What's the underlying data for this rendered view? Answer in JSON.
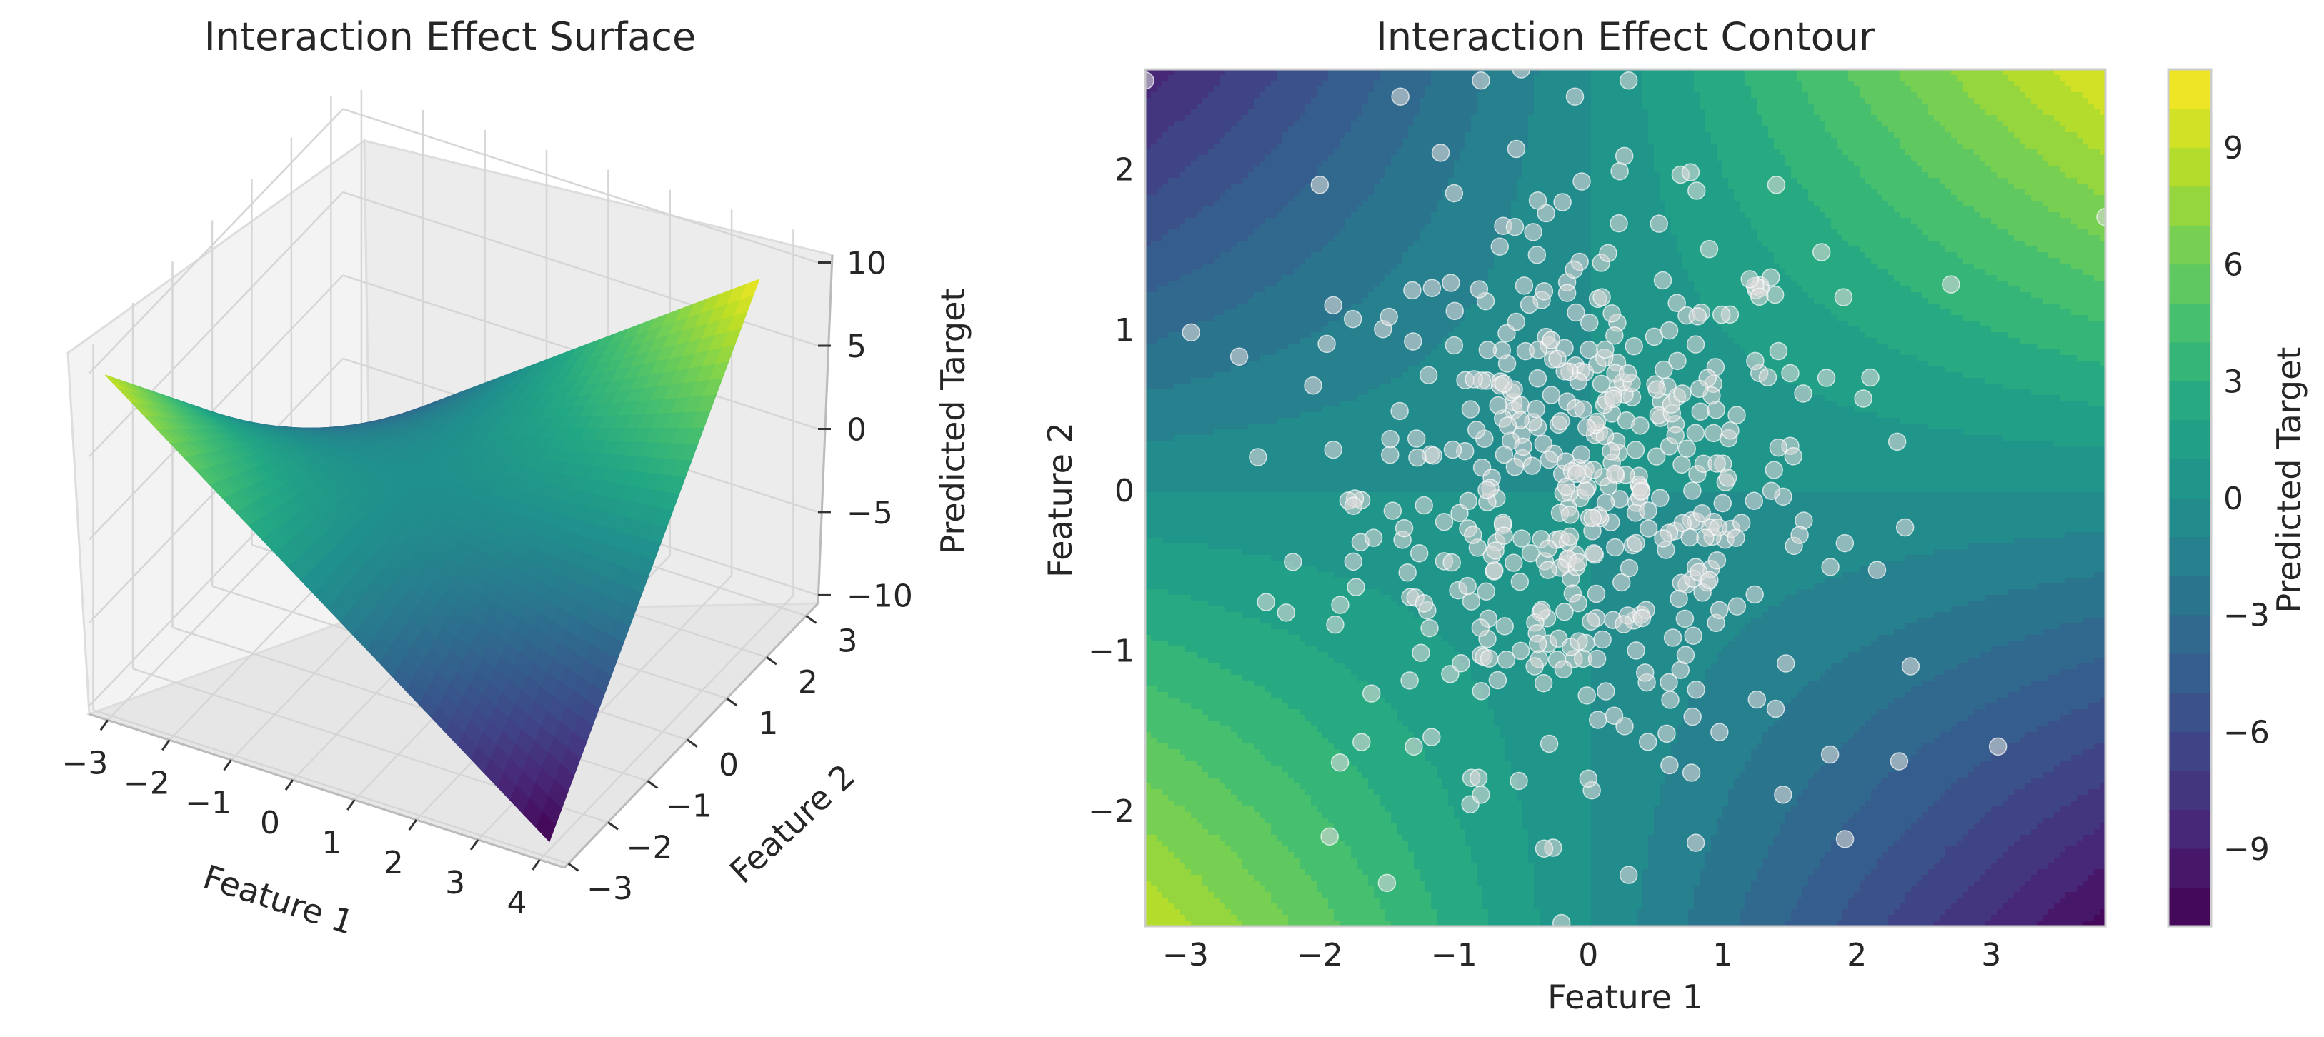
{
  "chart_data": [
    {
      "type": "surface3d",
      "title": "Interaction Effect Surface",
      "xlabel": "Feature 1",
      "ylabel": "Feature 2",
      "zlabel": "Predicted Target",
      "xlim": [
        -3.3,
        4.4
      ],
      "ylim": [
        -3.1,
        3.3
      ],
      "zlim": [
        -10.5,
        11.5
      ],
      "x_ticks": [
        -3,
        -2,
        -1,
        0,
        1,
        2,
        3,
        4
      ],
      "y_ticks": [
        -3,
        -2,
        -1,
        0,
        1,
        2,
        3
      ],
      "z_ticks": [
        -10,
        -5,
        0,
        5,
        10
      ],
      "x_tick_labels": [
        "−3",
        "−2",
        "−1",
        "0",
        "1",
        "2",
        "3",
        "4"
      ],
      "y_tick_labels": [
        "−3",
        "−2",
        "−1",
        "0",
        "1",
        "2",
        "3"
      ],
      "z_tick_labels": [
        "−10",
        "−5",
        "0",
        "5",
        "10"
      ],
      "surface": {
        "function": "z = x * y",
        "x_range": [
          -3.3,
          3.9
        ],
        "y_range": [
          -2.7,
          2.6
        ],
        "corners": [
          {
            "x": -3.3,
            "y": -2.7,
            "z": 8.9
          },
          {
            "x": 3.9,
            "y": -2.7,
            "z": -10.5
          },
          {
            "x": 3.9,
            "y": 2.6,
            "z": 10.1
          },
          {
            "x": -3.3,
            "y": 2.6,
            "z": -8.6
          }
        ]
      },
      "colormap": "viridis",
      "grid": true
    },
    {
      "type": "contour_scatter",
      "title": "Interaction Effect Contour",
      "xlabel": "Feature 1",
      "ylabel": "Feature 2",
      "xlim": [
        -3.3,
        3.85
      ],
      "ylim": [
        -2.72,
        2.62
      ],
      "x_ticks": [
        -3,
        -2,
        -1,
        0,
        1,
        2,
        3
      ],
      "y_ticks": [
        -2,
        -1,
        0,
        1,
        2
      ],
      "x_tick_labels": [
        "−3",
        "−2",
        "−1",
        "0",
        "1",
        "2",
        "3"
      ],
      "y_tick_labels": [
        "−2",
        "−1",
        "0",
        "1",
        "2"
      ],
      "contour": {
        "function": "z = x * y",
        "levels": [
          -11,
          -10,
          -9,
          -8,
          -7,
          -6,
          -5,
          -4,
          -3,
          -2,
          -1,
          0,
          1,
          2,
          3,
          4,
          5,
          6,
          7,
          8,
          9,
          10,
          11
        ],
        "colormap": "viridis"
      },
      "colorbar": {
        "label": "Predicted Target",
        "range": [
          -11,
          11
        ],
        "ticks": [
          -9,
          -6,
          -3,
          0,
          3,
          6,
          9
        ],
        "tick_labels": [
          "−9",
          "−6",
          "−3",
          "0",
          "3",
          "6",
          "9"
        ]
      },
      "scatter": {
        "description": "approx. 500 training samples drawn from a standard bivariate normal distribution",
        "n_points": 500,
        "distribution": "normal(0,1) x normal(0,1)",
        "marker_color": "#d8d8d8",
        "marker_alpha": 0.6,
        "points_visible_sample": [
          [
            -3.3,
            2.55
          ],
          [
            -2.6,
            0.83
          ],
          [
            -1.4,
            2.45
          ],
          [
            -0.8,
            2.55
          ],
          [
            -0.5,
            2.62
          ],
          [
            -0.1,
            2.45
          ],
          [
            0.3,
            2.55
          ],
          [
            -1.1,
            2.1
          ],
          [
            -2.0,
            1.9
          ],
          [
            -1.9,
            1.15
          ],
          [
            1.4,
            1.9
          ],
          [
            1.9,
            1.2
          ],
          [
            2.7,
            1.28
          ],
          [
            3.85,
            1.7
          ],
          [
            2.3,
            0.3
          ],
          [
            2.4,
            -1.1
          ],
          [
            3.05,
            -1.6
          ],
          [
            1.8,
            -1.65
          ],
          [
            1.45,
            -1.9
          ],
          [
            0.8,
            -2.2
          ],
          [
            0.3,
            -2.4
          ],
          [
            -0.2,
            -2.7
          ],
          [
            -1.5,
            -2.45
          ],
          [
            -1.85,
            -1.7
          ],
          [
            -2.4,
            -0.7
          ],
          [
            -2.2,
            -0.45
          ],
          [
            -1.3,
            -1.6
          ],
          [
            -0.8,
            -1.9
          ],
          [
            0.0,
            -1.8
          ],
          [
            0.6,
            -1.2
          ],
          [
            -0.6,
            0.4
          ],
          [
            0.2,
            0.1
          ],
          [
            -0.3,
            -0.5
          ],
          [
            0.7,
            0.6
          ],
          [
            1.1,
            -0.3
          ],
          [
            -1.0,
            0.9
          ],
          [
            0.1,
            1.2
          ],
          [
            -0.4,
            -1.1
          ],
          [
            0.9,
            1.5
          ],
          [
            -1.6,
            -0.3
          ],
          [
            1.6,
            0.6
          ],
          [
            0.4,
            -0.8
          ],
          [
            -2.05,
            0.65
          ],
          [
            -1.9,
            0.25
          ],
          [
            -1.75,
            -0.1
          ],
          [
            2.1,
            0.7
          ],
          [
            2.15,
            -0.5
          ],
          [
            -0.9,
            -0.6
          ]
        ]
      },
      "grid": false
    }
  ]
}
